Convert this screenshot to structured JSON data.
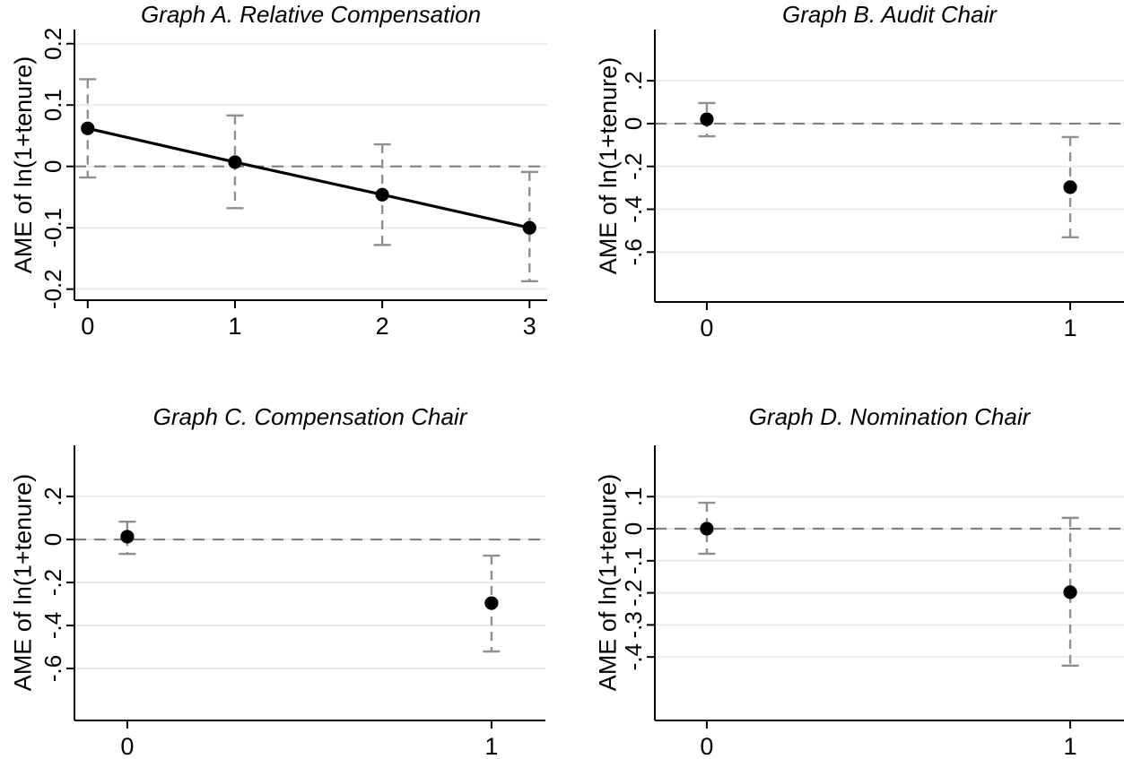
{
  "figure": {
    "background": "#ffffff",
    "marker_color": "#000000",
    "connect_line_color": "#000000",
    "ci_color": "#8f8f8f",
    "zero_line_color": "#808080",
    "grid_color": "#e4eef2",
    "axis_color": "#000000"
  },
  "chart_data": [
    {
      "panel": "A",
      "type": "scatter",
      "title": "Graph A. Relative Compensation",
      "ylabel": "AME of ln(1+tenure)",
      "xlabel": "",
      "x": [
        0,
        1,
        2,
        3
      ],
      "xtick_labels": [
        "0",
        "1",
        "2",
        "3"
      ],
      "y": [
        0.062,
        0.007,
        -0.046,
        -0.1
      ],
      "ci_low": [
        -0.018,
        -0.068,
        -0.128,
        -0.187
      ],
      "ci_high": [
        0.142,
        0.083,
        0.036,
        -0.009
      ],
      "connect_line": true,
      "zero_dashed_line": true,
      "grid": true,
      "yticks": [
        0.2,
        0.1,
        0,
        -0.1,
        -0.2
      ],
      "ytick_labels": [
        "0.2",
        "0.1",
        "0",
        "-0.1",
        "-0.2"
      ],
      "ylim": [
        -0.218,
        0.223
      ],
      "xlim": [
        -0.09,
        3.12
      ]
    },
    {
      "panel": "B",
      "type": "scatter",
      "title": "Graph B. Audit Chair",
      "ylabel": "AME of ln(1+tenure)",
      "xlabel": "",
      "x": [
        0,
        1
      ],
      "xtick_labels": [
        "0",
        "1"
      ],
      "y": [
        0.02,
        -0.297
      ],
      "ci_low": [
        -0.059,
        -0.531
      ],
      "ci_high": [
        0.096,
        -0.063
      ],
      "connect_line": false,
      "zero_dashed_line": true,
      "grid": true,
      "yticks": [
        0.2,
        0,
        -0.2,
        -0.4,
        -0.6
      ],
      "ytick_labels": [
        ".2",
        "0",
        "-.2",
        "-.4",
        "-.6"
      ],
      "ylim": [
        -0.833,
        0.439
      ],
      "xlim": [
        -0.143,
        1.148
      ]
    },
    {
      "panel": "C",
      "type": "scatter",
      "title": "Graph C. Compensation Chair",
      "ylabel": "AME of ln(1+tenure)",
      "xlabel": "",
      "x": [
        0,
        1
      ],
      "xtick_labels": [
        "0",
        "1"
      ],
      "y": [
        0.013,
        -0.296
      ],
      "ci_low": [
        -0.067,
        -0.521
      ],
      "ci_high": [
        0.083,
        -0.075
      ],
      "connect_line": false,
      "zero_dashed_line": true,
      "grid": true,
      "yticks": [
        0.2,
        0,
        -0.2,
        -0.4,
        -0.6
      ],
      "ytick_labels": [
        ".2",
        "0",
        "-.2",
        "-.4",
        "-.6"
      ],
      "ylim": [
        -0.842,
        0.438
      ],
      "xlim": [
        -0.145,
        1.148
      ]
    },
    {
      "panel": "D",
      "type": "scatter",
      "title": "Graph D. Nomination Chair",
      "ylabel": "AME of ln(1+tenure)",
      "xlabel": "",
      "x": [
        0,
        1
      ],
      "xtick_labels": [
        "0",
        "1"
      ],
      "y": [
        0.0,
        -0.198
      ],
      "ci_low": [
        -0.078,
        -0.427
      ],
      "ci_high": [
        0.081,
        0.034
      ],
      "connect_line": false,
      "zero_dashed_line": true,
      "grid": true,
      "yticks": [
        0.1,
        0,
        -0.1,
        -0.2,
        -0.3,
        -0.4
      ],
      "ytick_labels": [
        ".1",
        "0",
        "-.1",
        "-.2",
        "-.3",
        "-.4"
      ],
      "ylim": [
        -0.598,
        0.26
      ],
      "xlim": [
        -0.143,
        1.148
      ]
    }
  ]
}
